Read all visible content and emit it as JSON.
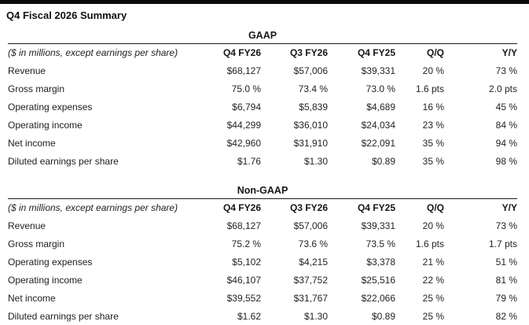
{
  "page": {
    "title": "Q4 Fiscal 2026 Summary"
  },
  "colors": {
    "top_bar": "#0a0a0a",
    "text": "#1d1d1d",
    "rule": "#1a1a1a",
    "background": "#ffffff"
  },
  "sections": [
    {
      "title": "GAAP",
      "note": "($ in millions, except earnings per share)",
      "columns": [
        "Q4 FY26",
        "Q3 FY26",
        "Q4 FY25",
        "Q/Q",
        "Y/Y"
      ],
      "rows": [
        {
          "label": "Revenue",
          "values": [
            "$68,127",
            "$57,006",
            "$39,331",
            "20 %",
            "73 %"
          ]
        },
        {
          "label": "Gross margin",
          "values": [
            "75.0 %",
            "73.4 %",
            "73.0 %",
            "1.6 pts",
            "2.0 pts"
          ]
        },
        {
          "label": "Operating expenses",
          "values": [
            "$6,794",
            "$5,839",
            "$4,689",
            "16 %",
            "45 %"
          ]
        },
        {
          "label": "Operating income",
          "values": [
            "$44,299",
            "$36,010",
            "$24,034",
            "23 %",
            "84 %"
          ]
        },
        {
          "label": "Net income",
          "values": [
            "$42,960",
            "$31,910",
            "$22,091",
            "35 %",
            "94 %"
          ]
        },
        {
          "label": "Diluted earnings per share",
          "values": [
            "$1.76",
            "$1.30",
            "$0.89",
            "35 %",
            "98 %"
          ]
        }
      ]
    },
    {
      "title": "Non-GAAP",
      "note": "($ in millions, except earnings per share)",
      "columns": [
        "Q4 FY26",
        "Q3 FY26",
        "Q4 FY25",
        "Q/Q",
        "Y/Y"
      ],
      "rows": [
        {
          "label": "Revenue",
          "values": [
            "$68,127",
            "$57,006",
            "$39,331",
            "20 %",
            "73 %"
          ]
        },
        {
          "label": "Gross margin",
          "values": [
            "75.2 %",
            "73.6 %",
            "73.5 %",
            "1.6 pts",
            "1.7 pts"
          ]
        },
        {
          "label": "Operating expenses",
          "values": [
            "$5,102",
            "$4,215",
            "$3,378",
            "21 %",
            "51 %"
          ]
        },
        {
          "label": "Operating income",
          "values": [
            "$46,107",
            "$37,752",
            "$25,516",
            "22 %",
            "81 %"
          ]
        },
        {
          "label": "Net income",
          "values": [
            "$39,552",
            "$31,767",
            "$22,066",
            "25 %",
            "79 %"
          ]
        },
        {
          "label": "Diluted earnings per share",
          "values": [
            "$1.62",
            "$1.30",
            "$0.89",
            "25 %",
            "82 %"
          ]
        }
      ]
    }
  ]
}
